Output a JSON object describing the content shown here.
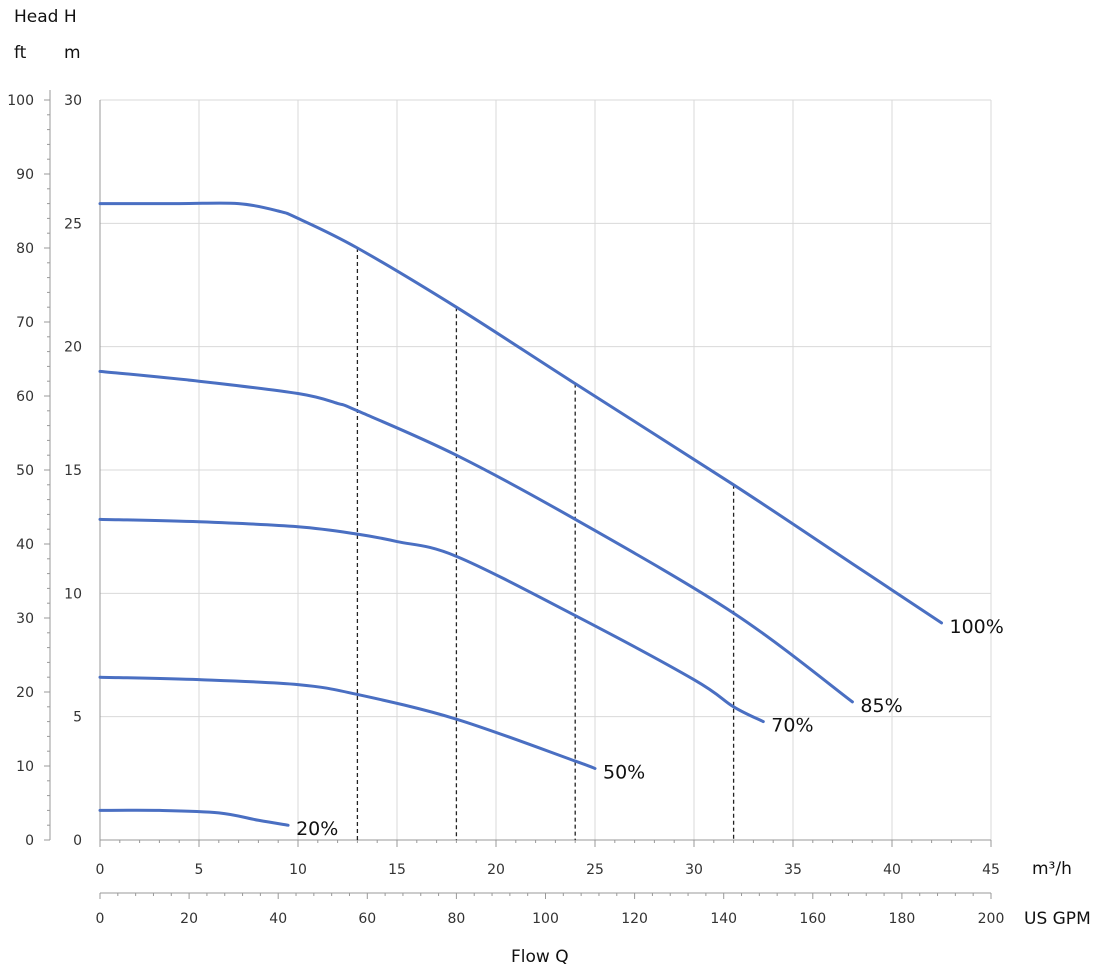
{
  "chart_data": {
    "type": "line",
    "title": "",
    "y_axis_title": "Head  H",
    "y_units": {
      "ft": "ft",
      "m": "m"
    },
    "x_axis_title": "Flow  Q",
    "x_units": {
      "m3h": "m³/h",
      "gpm": "US GPM"
    },
    "x_m3h": {
      "min": 0,
      "max": 45,
      "step": 5,
      "ticks": [
        "0",
        "5",
        "10",
        "15",
        "20",
        "25",
        "30",
        "35",
        "40",
        "45"
      ]
    },
    "x_gpm": {
      "min": 0,
      "max": 200,
      "step": 20,
      "ticks": [
        "0",
        "20",
        "40",
        "60",
        "80",
        "100",
        "120",
        "140",
        "160",
        "180",
        "200"
      ]
    },
    "y_m": {
      "min": 0,
      "max": 30,
      "step": 5,
      "ticks": [
        "0",
        "5",
        "10",
        "15",
        "20",
        "25",
        "30"
      ]
    },
    "y_ft": {
      "min": 0,
      "max": 100,
      "step": 10,
      "ticks": [
        "0",
        "10",
        "20",
        "30",
        "40",
        "50",
        "60",
        "70",
        "80",
        "90",
        "100"
      ]
    },
    "grid": true,
    "line_color": "#4a6fc2",
    "series": [
      {
        "name": "100%",
        "x": [
          0,
          4,
          7,
          9,
          10,
          13,
          18,
          24,
          32,
          38,
          42.5
        ],
        "y": [
          25.8,
          25.8,
          25.8,
          25.5,
          25.2,
          24,
          21.6,
          18.5,
          14.4,
          11.2,
          8.8
        ]
      },
      {
        "name": "85%",
        "x": [
          0,
          5,
          10,
          12,
          13,
          18,
          24,
          32,
          38
        ],
        "y": [
          19,
          18.6,
          18.1,
          17.7,
          17.4,
          15.6,
          13,
          9.2,
          5.6
        ]
      },
      {
        "name": "70%",
        "x": [
          0,
          5,
          10,
          13,
          15,
          18,
          24,
          30,
          32,
          33.5
        ],
        "y": [
          13,
          12.9,
          12.7,
          12.4,
          12.1,
          11.5,
          9.1,
          6.5,
          5.4,
          4.8
        ]
      },
      {
        "name": "50%",
        "x": [
          0,
          5,
          10,
          13,
          18,
          24,
          25
        ],
        "y": [
          6.6,
          6.5,
          6.3,
          5.9,
          4.9,
          3.2,
          2.9
        ]
      },
      {
        "name": "20%",
        "x": [
          0,
          3,
          6,
          8,
          9.5
        ],
        "y": [
          1.2,
          1.2,
          1.1,
          0.8,
          0.6
        ]
      }
    ],
    "dashed_verticals": [
      {
        "x": 13,
        "y_top": 24
      },
      {
        "x": 18,
        "y_top": 21.6
      },
      {
        "x": 24,
        "y_top": 18.5
      },
      {
        "x": 32,
        "y_top": 14.4
      }
    ]
  }
}
